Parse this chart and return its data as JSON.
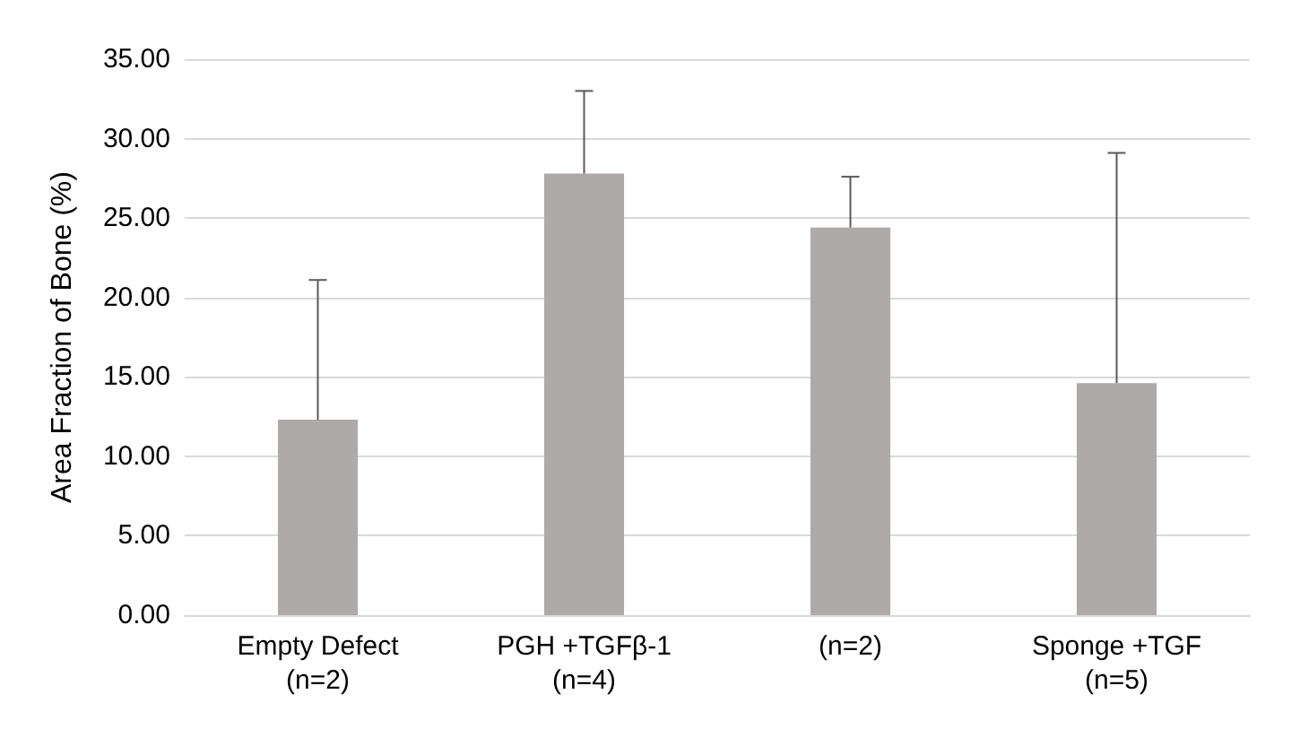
{
  "chart_data": {
    "type": "bar",
    "ylabel": "Area Fraction of Bone (%)",
    "categories": [
      "Empty Defect\n(n=2)",
      "PGH +TGFβ-1\n(n=4)",
      "(n=2)",
      "Sponge +TGF\n(n=5)"
    ],
    "values": [
      12.3,
      27.8,
      24.4,
      14.6
    ],
    "errors": [
      [
        12.3,
        21.1
      ],
      [
        27.8,
        33.0
      ],
      [
        24.4,
        27.6
      ],
      [
        14.6,
        29.1
      ]
    ],
    "color": "#aeaaaa",
    "ylim": [
      0,
      35
    ],
    "yticks": [
      {
        "value": 0,
        "label": "0.00"
      },
      {
        "value": 5,
        "label": "5.00"
      },
      {
        "value": 10,
        "label": "10.00"
      },
      {
        "value": 15,
        "label": "15.00"
      },
      {
        "value": 20,
        "label": "20.00"
      },
      {
        "value": 25,
        "label": "25.00"
      },
      {
        "value": 30,
        "label": "30.00"
      },
      {
        "value": 35,
        "label": "35.00"
      }
    ],
    "grid": "y"
  }
}
